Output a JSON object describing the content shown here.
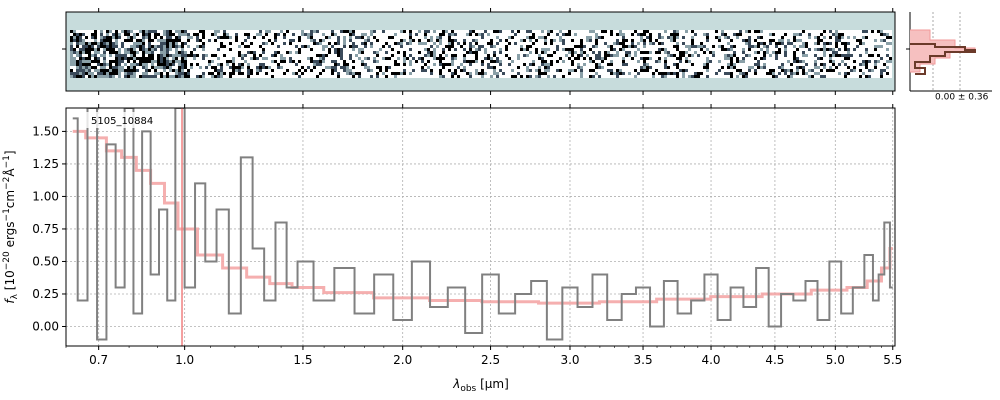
{
  "chart_data": {
    "type": "line",
    "object_label": "5105_10884",
    "ylabel": "$f_\\lambda$ [10$^{-20}$ ergs$^{-1}$cm$^{-2}$Å$^{-1}$]",
    "ylabel_main": "f",
    "ylabel_sub": "λ",
    "ylabel_bracket": " [10",
    "ylabel_exp1": "−20",
    "ylabel_mid": " ergs",
    "ylabel_exp2": "−1",
    "ylabel_mid2": "cm",
    "ylabel_exp3": "−2",
    "ylabel_mid3": "Å",
    "ylabel_exp4": "−1",
    "ylabel_end": "]",
    "xlabel_main": "λ",
    "xlabel_sub": "obs",
    "xlabel_unit": " [μm]",
    "x_scale": "reciprocal-like (sqrt)",
    "xlim": [
      0.6,
      5.52
    ],
    "ylim": [
      -0.15,
      1.68
    ],
    "xticks": [
      0.7,
      1.0,
      1.5,
      2.0,
      2.5,
      3.0,
      3.5,
      4.0,
      4.5,
      5.0,
      5.5
    ],
    "xtick_labels": [
      "0.7",
      "1.0",
      "1.5",
      "2.0",
      "2.5",
      "3.0",
      "3.5",
      "4.0",
      "4.5",
      "5.0",
      "5.5"
    ],
    "yticks": [
      0.0,
      0.25,
      0.5,
      0.75,
      1.0,
      1.25,
      1.5
    ],
    "ytick_labels": [
      "0.00",
      "0.25",
      "0.50",
      "0.75",
      "1.00",
      "1.25",
      "1.50"
    ],
    "grid": true,
    "vertical_line_x": 0.99,
    "model_color": "#f4a6a6",
    "data_color": "#808080",
    "series": [
      {
        "style": "model",
        "x": [
          0.62,
          0.7,
          0.75,
          0.8,
          0.85,
          0.9,
          0.95,
          1.0,
          1.1,
          1.2,
          1.3,
          1.4,
          1.5,
          1.7,
          2.0,
          2.3,
          2.6,
          3.0,
          3.4,
          3.8,
          4.2,
          4.6,
          5.0,
          5.2,
          5.35,
          5.45,
          5.5
        ],
        "y": [
          1.5,
          1.45,
          1.35,
          1.3,
          1.2,
          1.1,
          0.95,
          0.75,
          0.55,
          0.45,
          0.38,
          0.33,
          0.3,
          0.26,
          0.22,
          0.2,
          0.19,
          0.18,
          0.19,
          0.21,
          0.23,
          0.25,
          0.28,
          0.3,
          0.35,
          0.45,
          0.6
        ]
      },
      {
        "style": "data",
        "x": [
          0.62,
          0.65,
          0.68,
          0.71,
          0.74,
          0.77,
          0.8,
          0.83,
          0.86,
          0.89,
          0.92,
          0.95,
          0.98,
          1.02,
          1.06,
          1.1,
          1.15,
          1.2,
          1.25,
          1.3,
          1.35,
          1.4,
          1.45,
          1.5,
          1.6,
          1.7,
          1.8,
          1.9,
          2.0,
          2.1,
          2.2,
          2.3,
          2.4,
          2.5,
          2.6,
          2.7,
          2.8,
          2.9,
          3.0,
          3.1,
          3.2,
          3.3,
          3.4,
          3.5,
          3.6,
          3.7,
          3.8,
          3.9,
          4.0,
          4.1,
          4.2,
          4.3,
          4.4,
          4.5,
          4.6,
          4.7,
          4.8,
          4.9,
          5.0,
          5.1,
          5.2,
          5.3,
          5.35,
          5.4,
          5.45,
          5.5
        ],
        "y": [
          1.6,
          0.2,
          1.68,
          -0.1,
          1.4,
          0.3,
          1.68,
          0.1,
          1.5,
          0.4,
          0.9,
          0.2,
          1.68,
          0.3,
          1.1,
          0.5,
          0.9,
          0.1,
          1.3,
          0.6,
          0.2,
          0.8,
          0.3,
          0.5,
          0.2,
          0.45,
          0.1,
          0.4,
          0.05,
          0.5,
          0.15,
          0.3,
          -0.05,
          0.4,
          0.1,
          0.25,
          0.35,
          -0.1,
          0.3,
          0.15,
          0.4,
          0.05,
          0.25,
          0.3,
          0.0,
          0.35,
          0.1,
          0.2,
          0.4,
          0.05,
          0.3,
          0.15,
          0.45,
          0.0,
          0.25,
          0.2,
          0.35,
          0.05,
          0.5,
          0.1,
          0.3,
          0.55,
          0.2,
          0.4,
          0.8,
          0.3
        ]
      }
    ]
  },
  "side_panel": {
    "label": "0.00 ± 0.36"
  }
}
